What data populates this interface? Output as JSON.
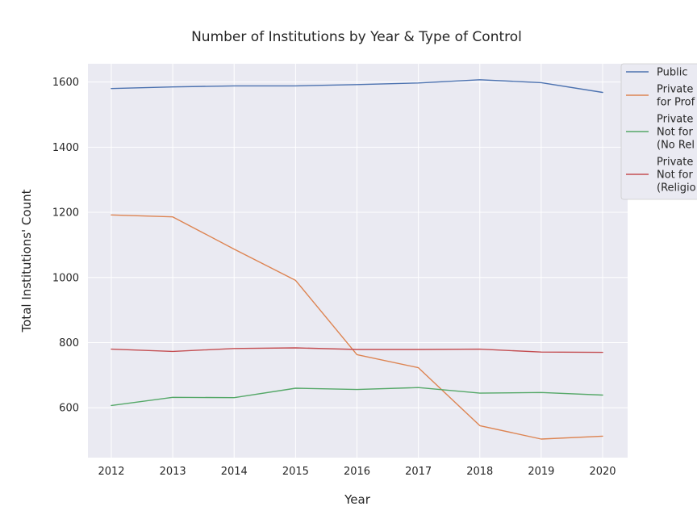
{
  "chart_data": {
    "type": "line",
    "title": "Number of Institutions by Year & Type of Control",
    "xlabel": "Year",
    "ylabel": "Total Institutions' Count",
    "x": [
      2012,
      2013,
      2014,
      2015,
      2016,
      2017,
      2018,
      2019,
      2020
    ],
    "x_tick_labels": [
      "2012",
      "2013",
      "2014",
      "2015",
      "2016",
      "2017",
      "2018",
      "2019",
      "2020"
    ],
    "ylim": [
      447,
      1656
    ],
    "y_ticks": [
      600,
      800,
      1000,
      1200,
      1400,
      1600
    ],
    "y_tick_labels": [
      "600",
      "800",
      "1000",
      "1200",
      "1400",
      "1600"
    ],
    "grid": true,
    "legend_position": "top-right outside",
    "series": [
      {
        "name": "Public",
        "legend_lines": [
          "Public"
        ],
        "color": "#4c72b0",
        "values": [
          1580,
          1585,
          1588,
          1588,
          1592,
          1597,
          1607,
          1598,
          1568
        ]
      },
      {
        "name": "Private for Profit",
        "legend_lines": [
          "Private",
          "for Prof"
        ],
        "color": "#dd8452",
        "values": [
          1192,
          1186,
          1087,
          991,
          763,
          723,
          545,
          504,
          513
        ]
      },
      {
        "name": "Private Not for Profit (No Religious)",
        "legend_lines": [
          "Private",
          "Not for",
          "(No Rel"
        ],
        "color": "#55a868",
        "values": [
          607,
          632,
          631,
          660,
          656,
          662,
          645,
          647,
          639
        ]
      },
      {
        "name": "Private Not for Profit (Religious)",
        "legend_lines": [
          "Private",
          "Not for",
          "(Religio"
        ],
        "color": "#c44e52",
        "values": [
          780,
          773,
          782,
          784,
          779,
          779,
          780,
          771,
          770
        ]
      }
    ]
  }
}
